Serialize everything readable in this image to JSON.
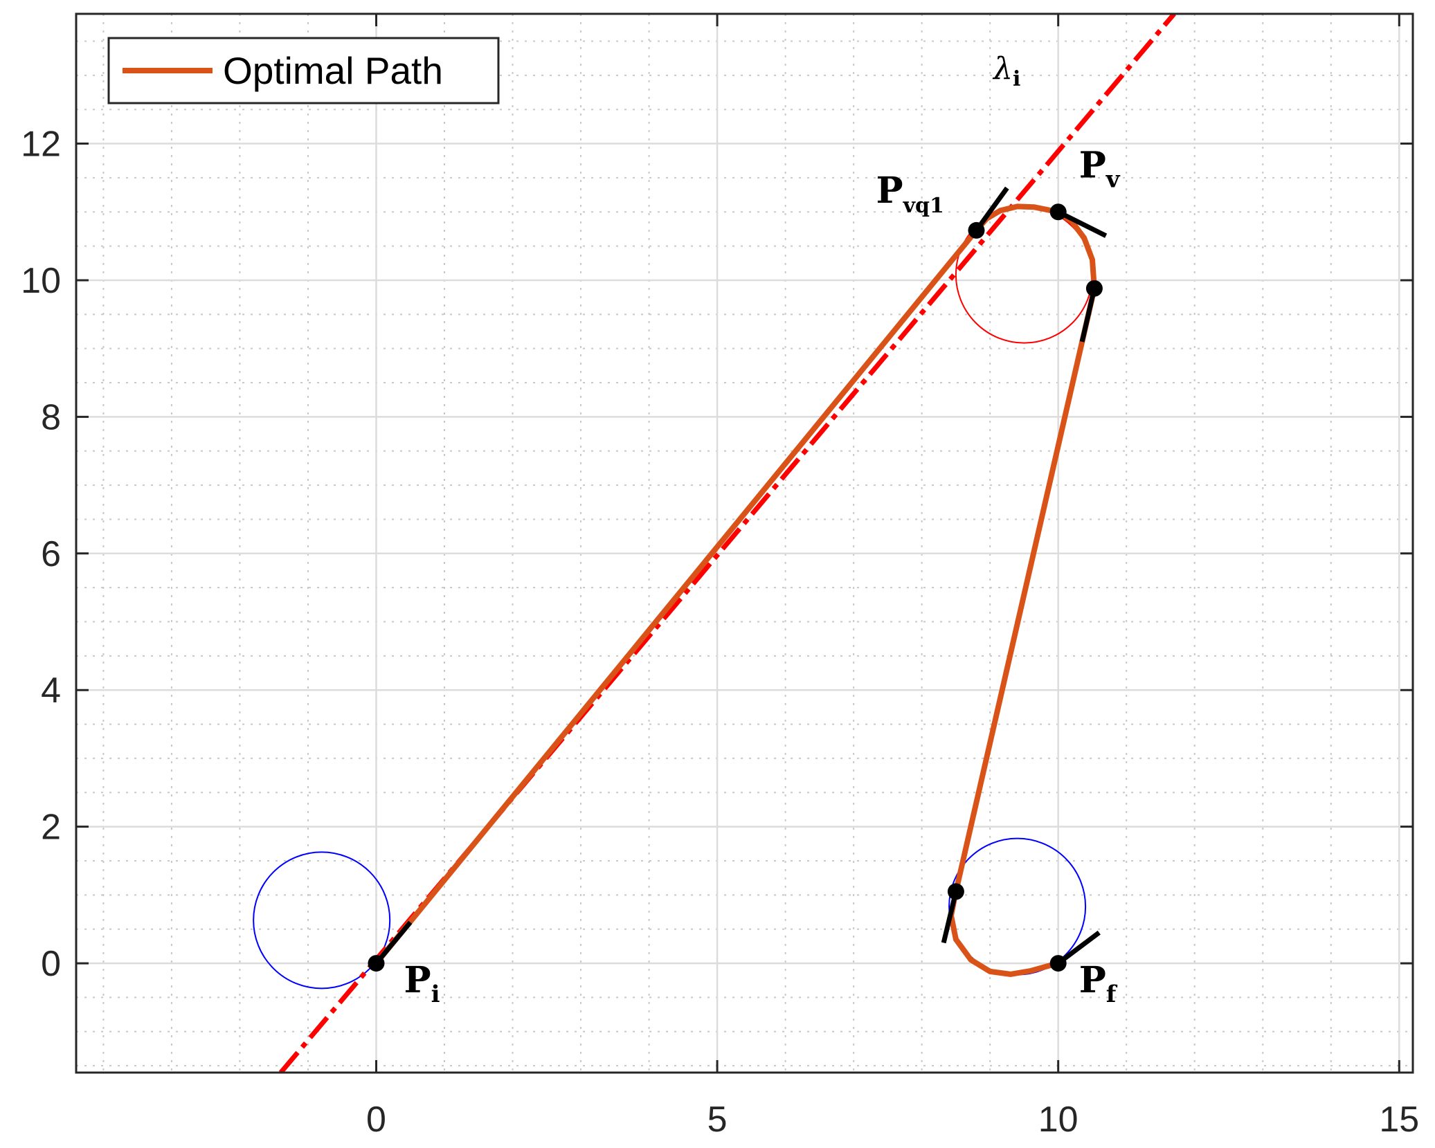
{
  "chart_data": {
    "type": "line",
    "title": "",
    "xlabel": "",
    "ylabel": "",
    "xlim": [
      -4.4,
      15.2
    ],
    "ylim": [
      -1.6,
      13.9
    ],
    "x_ticks": [
      0,
      5,
      10,
      15
    ],
    "y_ticks": [
      0,
      2,
      4,
      6,
      8,
      10,
      12
    ],
    "x_tick_labels": [
      "0",
      "5",
      "10",
      "15"
    ],
    "y_tick_labels": [
      "0",
      "2",
      "4",
      "6",
      "8",
      "10",
      "12"
    ],
    "x_minor_step": 1,
    "y_minor_step": 0.5,
    "grid": true,
    "minor_grid": true,
    "legend": {
      "position": "top-left",
      "entries": [
        "Optimal Path"
      ]
    },
    "colors": {
      "path": "#d95319",
      "guide_line": "#ff0000",
      "turn_circle_start": "#0000ff",
      "turn_circle_mid": "#ff0000",
      "turn_circle_end": "#0000ff",
      "marker": "#000000",
      "grid_major": "#dcdcdc",
      "grid_minor": "#c8c8c8",
      "axes": "#262626"
    },
    "series": [
      {
        "name": "Optimal Path",
        "points": [
          [
            0,
            0
          ],
          [
            8.8,
            10.73
          ],
          [
            8.95,
            10.9
          ],
          [
            9.15,
            11.02
          ],
          [
            9.4,
            11.08
          ],
          [
            9.65,
            11.07
          ],
          [
            9.85,
            11.03
          ],
          [
            10.0,
            11.0
          ],
          [
            10.2,
            10.86
          ],
          [
            10.38,
            10.62
          ],
          [
            10.5,
            10.3
          ],
          [
            10.53,
            9.88
          ],
          [
            8.5,
            1.05
          ],
          [
            8.43,
            0.7
          ],
          [
            8.5,
            0.35
          ],
          [
            8.72,
            0.05
          ],
          [
            9.0,
            -0.12
          ],
          [
            9.3,
            -0.16
          ],
          [
            9.6,
            -0.11
          ],
          [
            9.85,
            -0.04
          ],
          [
            10.0,
            0
          ]
        ]
      }
    ],
    "guide_line": {
      "label": "λi",
      "points": [
        [
          -1.4,
          -1.6
        ],
        [
          11.7,
          13.9
        ]
      ]
    },
    "circles": [
      {
        "cx": -0.8,
        "cy": 0.63,
        "r": 1.0
      },
      {
        "cx": 9.5,
        "cy": 10.08,
        "r": 1.0
      },
      {
        "cx": 9.4,
        "cy": 0.83,
        "r": 1.0
      }
    ],
    "points": [
      {
        "label": "P",
        "subscript": "i",
        "x": 0,
        "y": 0
      },
      {
        "label": "P",
        "subscript": "vq1",
        "x": 8.8,
        "y": 10.73
      },
      {
        "label": "P",
        "subscript": "v",
        "x": 10.0,
        "y": 11.0
      },
      {
        "label": "",
        "subscript": "",
        "x": 10.53,
        "y": 9.88
      },
      {
        "label": "",
        "subscript": "",
        "x": 8.5,
        "y": 1.05
      },
      {
        "label": "P",
        "subscript": "f",
        "x": 10.0,
        "y": 0
      }
    ],
    "heading_ticks": [
      {
        "x1": 0,
        "y1": 0,
        "x2": 0.5,
        "y2": 0.6
      },
      {
        "x1": 8.8,
        "y1": 10.73,
        "x2": 9.25,
        "y2": 11.35
      },
      {
        "x1": 10.0,
        "y1": 11.0,
        "x2": 10.7,
        "y2": 10.65
      },
      {
        "x1": 10.53,
        "y1": 9.88,
        "x2": 10.35,
        "y2": 9.1
      },
      {
        "x1": 8.5,
        "y1": 1.05,
        "x2": 8.32,
        "y2": 0.3
      },
      {
        "x1": 10.0,
        "y1": 0,
        "x2": 10.6,
        "y2": 0.45
      }
    ]
  }
}
